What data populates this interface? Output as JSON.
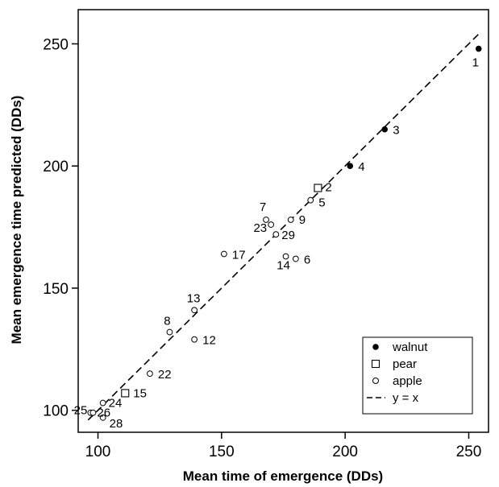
{
  "chart_data": {
    "type": "scatter",
    "title": "",
    "xlabel": "Mean time of emergence (DDs)",
    "ylabel": "Mean emergence time predicted (DDs)",
    "xlim": [
      92,
      258
    ],
    "ylim": [
      91,
      264
    ],
    "xticks": [
      100,
      150,
      200,
      250
    ],
    "yticks": [
      100,
      150,
      200,
      250
    ],
    "grid": false,
    "legend_position": "bottom-right",
    "reference_line": {
      "name": "y = x",
      "style": "dashed",
      "from": 96,
      "to": 254
    },
    "series": [
      {
        "name": "walnut",
        "marker": "filled-circle",
        "points": [
          {
            "label": "1",
            "x": 254,
            "y": 248
          },
          {
            "label": "3",
            "x": 216,
            "y": 215
          },
          {
            "label": "4",
            "x": 202,
            "y": 200
          }
        ]
      },
      {
        "name": "pear",
        "marker": "open-square",
        "points": [
          {
            "label": "2",
            "x": 189,
            "y": 191
          },
          {
            "label": "15",
            "x": 111,
            "y": 107
          }
        ]
      },
      {
        "name": "apple",
        "marker": "open-circle",
        "points": [
          {
            "label": "5",
            "x": 186,
            "y": 186
          },
          {
            "label": "6",
            "x": 180,
            "y": 162
          },
          {
            "label": "7",
            "x": 168,
            "y": 178
          },
          {
            "label": "9",
            "x": 178,
            "y": 178
          },
          {
            "label": "23",
            "x": 170,
            "y": 176
          },
          {
            "label": "29",
            "x": 172,
            "y": 172
          },
          {
            "label": "14",
            "x": 176,
            "y": 163
          },
          {
            "label": "17",
            "x": 151,
            "y": 164
          },
          {
            "label": "13",
            "x": 139,
            "y": 141
          },
          {
            "label": "8",
            "x": 129,
            "y": 132
          },
          {
            "label": "12",
            "x": 139,
            "y": 129
          },
          {
            "label": "22",
            "x": 121,
            "y": 115
          },
          {
            "label": "24",
            "x": 102,
            "y": 103
          },
          {
            "label": "25",
            "x": 97,
            "y": 99
          },
          {
            "label": "26",
            "x": 98,
            "y": 99
          },
          {
            "label": "28",
            "x": 102,
            "y": 97
          }
        ]
      }
    ]
  }
}
